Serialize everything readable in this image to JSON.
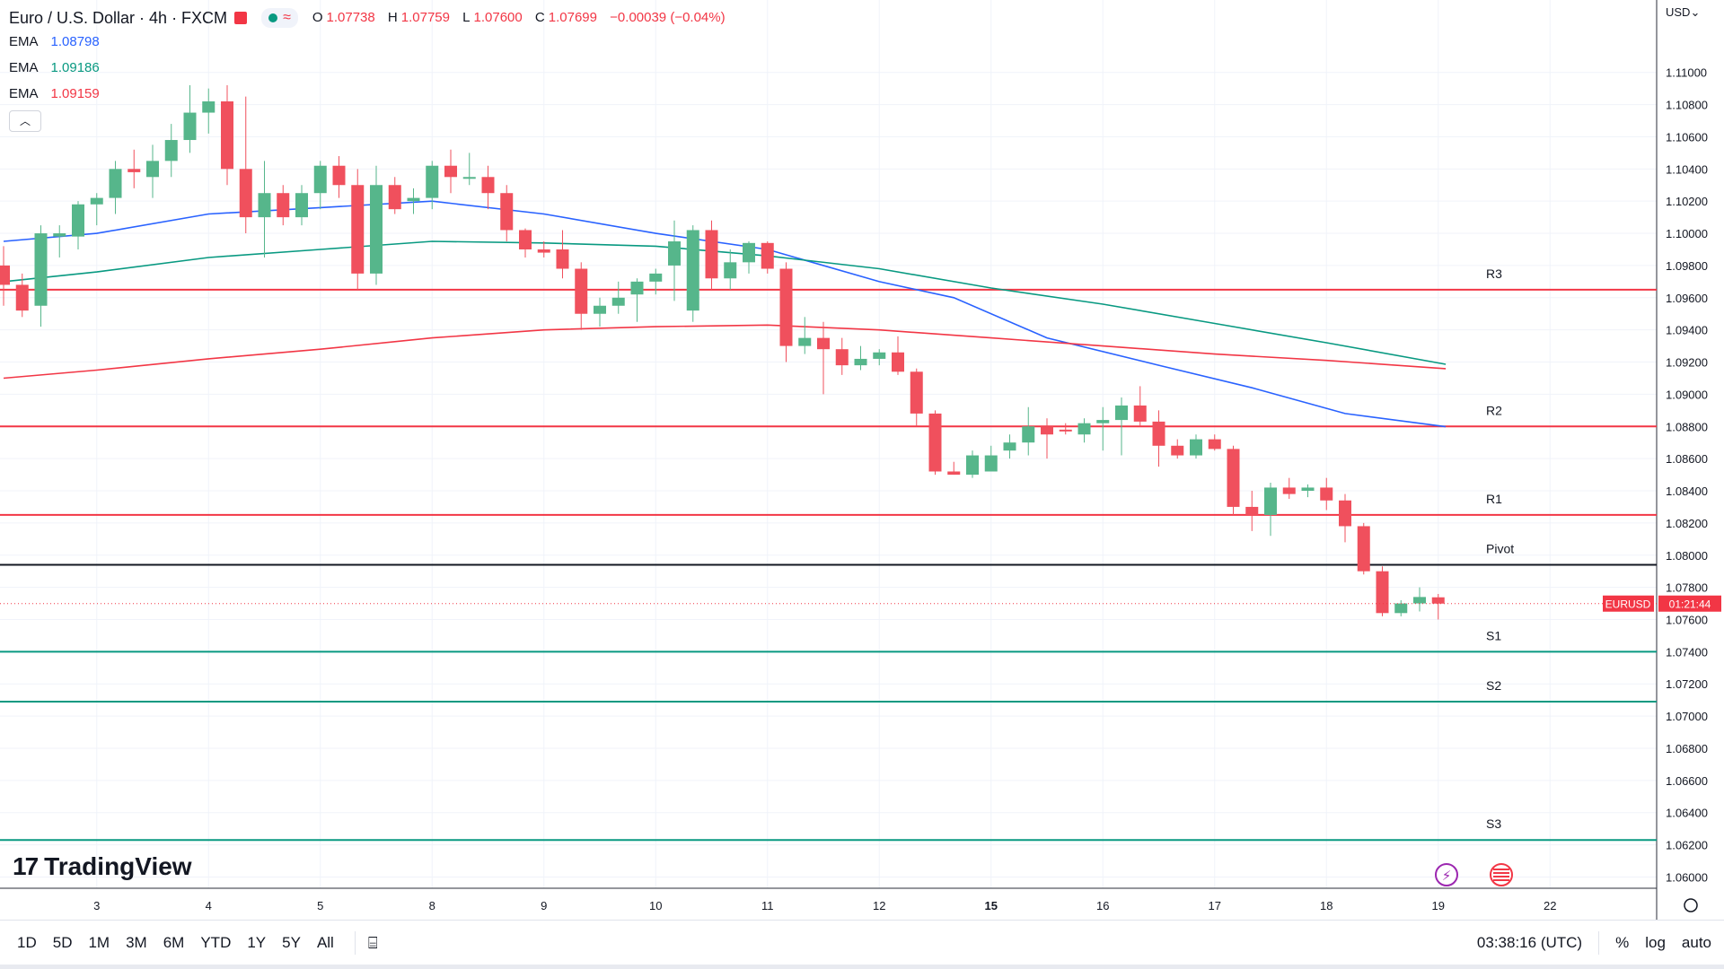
{
  "header": {
    "symbol": "Euro / U.S. Dollar · 4h · FXCM",
    "wave_icon": "≈",
    "ohlc": [
      {
        "label": "O",
        "value": "1.07738"
      },
      {
        "label": "H",
        "value": "1.07759"
      },
      {
        "label": "L",
        "value": "1.07600"
      },
      {
        "label": "C",
        "value": "1.07699"
      },
      {
        "label": "",
        "value": "−0.00039 (−0.04%)"
      }
    ]
  },
  "indicators": [
    {
      "name": "EMA",
      "value": "1.08798",
      "color": "#2962ff"
    },
    {
      "name": "EMA",
      "value": "1.09186",
      "color": "#089981"
    },
    {
      "name": "EMA",
      "value": "1.09159",
      "color": "#f23645"
    }
  ],
  "currency_menu": "USD⌄",
  "brand": "TradingView",
  "price_tag": {
    "symbol": "EURUSD",
    "countdown": "01:21:44"
  },
  "timeframes": [
    "1D",
    "5D",
    "1M",
    "3M",
    "6M",
    "YTD",
    "1Y",
    "5Y",
    "All"
  ],
  "clock": "03:38:16 (UTC)",
  "scale_options": [
    "%",
    "log",
    "auto"
  ],
  "chart_data": {
    "type": "candlestick",
    "title": "",
    "ylim": [
      1.0593,
      1.1145
    ],
    "y_ticks": [
      "1.11000",
      "1.10800",
      "1.10600",
      "1.10400",
      "1.10200",
      "1.10000",
      "1.09800",
      "1.09600",
      "1.09400",
      "1.09200",
      "1.09000",
      "1.08800",
      "1.08600",
      "1.08400",
      "1.08200",
      "1.08000",
      "1.07800",
      "1.07600",
      "1.07400",
      "1.07200",
      "1.07000",
      "1.06800",
      "1.06600",
      "1.06400",
      "1.06200",
      "1.06000"
    ],
    "x_ticks": [
      {
        "label": "3",
        "index": 5.0
      },
      {
        "label": "4",
        "index": 11.0
      },
      {
        "label": "5",
        "index": 17.0
      },
      {
        "label": "8",
        "index": 23.0
      },
      {
        "label": "9",
        "index": 29.0
      },
      {
        "label": "10",
        "index": 35.0
      },
      {
        "label": "11",
        "index": 41.0
      },
      {
        "label": "12",
        "index": 47.0
      },
      {
        "label": "15",
        "index": 53.0
      },
      {
        "label": "16",
        "index": 59.0
      },
      {
        "label": "17",
        "index": 65.0
      },
      {
        "label": "18",
        "index": 71.0
      },
      {
        "label": "19",
        "index": 77.0
      },
      {
        "label": "22",
        "index": 83.0
      }
    ],
    "candles": [
      [
        1.098,
        1.0992,
        1.0955,
        1.0968
      ],
      [
        1.0968,
        1.0975,
        1.0948,
        1.0952
      ],
      [
        1.0955,
        1.1005,
        1.0942,
        1.1
      ],
      [
        1.0998,
        1.1005,
        1.0985,
        1.1
      ],
      [
        1.0998,
        1.102,
        1.099,
        1.1018
      ],
      [
        1.1018,
        1.1025,
        1.1005,
        1.1022
      ],
      [
        1.1022,
        1.1045,
        1.1012,
        1.104
      ],
      [
        1.104,
        1.1052,
        1.1028,
        1.1038
      ],
      [
        1.1035,
        1.1055,
        1.1022,
        1.1045
      ],
      [
        1.1045,
        1.1068,
        1.1035,
        1.1058
      ],
      [
        1.1058,
        1.1092,
        1.105,
        1.1075
      ],
      [
        1.1075,
        1.109,
        1.1062,
        1.1082
      ],
      [
        1.1082,
        1.1092,
        1.103,
        1.104
      ],
      [
        1.104,
        1.1085,
        1.1,
        1.101
      ],
      [
        1.101,
        1.1045,
        1.0985,
        1.1025
      ],
      [
        1.1025,
        1.103,
        1.1005,
        1.101
      ],
      [
        1.101,
        1.103,
        1.1005,
        1.1025
      ],
      [
        1.1025,
        1.1045,
        1.1015,
        1.1042
      ],
      [
        1.1042,
        1.1048,
        1.1022,
        1.103
      ],
      [
        1.103,
        1.104,
        1.0965,
        1.0975
      ],
      [
        1.0975,
        1.1042,
        1.0968,
        1.103
      ],
      [
        1.103,
        1.1035,
        1.1012,
        1.1015
      ],
      [
        1.102,
        1.1028,
        1.1012,
        1.1022
      ],
      [
        1.1022,
        1.1045,
        1.1015,
        1.1042
      ],
      [
        1.1042,
        1.1052,
        1.1025,
        1.1035
      ],
      [
        1.1035,
        1.105,
        1.103,
        1.1035
      ],
      [
        1.1035,
        1.1042,
        1.1015,
        1.1025
      ],
      [
        1.1025,
        1.103,
        1.0995,
        1.1002
      ],
      [
        1.1002,
        1.1003,
        1.0985,
        1.099
      ],
      [
        1.099,
        1.0995,
        1.0985,
        1.0988
      ],
      [
        1.099,
        1.1002,
        1.0972,
        1.0978
      ],
      [
        1.0978,
        1.0982,
        1.094,
        1.095
      ],
      [
        1.095,
        1.096,
        1.0942,
        1.0955
      ],
      [
        1.0955,
        1.097,
        1.095,
        1.096
      ],
      [
        1.0962,
        1.0972,
        1.0945,
        1.097
      ],
      [
        1.097,
        1.0978,
        1.0962,
        1.0975
      ],
      [
        1.098,
        1.1008,
        1.0958,
        1.0995
      ],
      [
        1.0952,
        1.1005,
        1.0945,
        1.1002
      ],
      [
        1.1002,
        1.1008,
        1.0965,
        1.0972
      ],
      [
        1.0972,
        1.099,
        1.0965,
        1.0982
      ],
      [
        1.0982,
        1.0995,
        1.0975,
        1.0994
      ],
      [
        1.0994,
        1.0995,
        1.0975,
        1.0978
      ],
      [
        1.0978,
        1.0982,
        1.092,
        1.093
      ],
      [
        1.093,
        1.0948,
        1.0925,
        1.0935
      ],
      [
        1.0935,
        1.0945,
        1.09,
        1.0928
      ],
      [
        1.0928,
        1.0935,
        1.0912,
        1.0918
      ],
      [
        1.0918,
        1.093,
        1.0915,
        1.0922
      ],
      [
        1.0922,
        1.0928,
        1.0918,
        1.0926
      ],
      [
        1.0926,
        1.0936,
        1.0912,
        1.0914
      ],
      [
        1.0914,
        1.0916,
        1.088,
        1.0888
      ],
      [
        1.0888,
        1.089,
        1.085,
        1.0852
      ],
      [
        1.0852,
        1.0858,
        1.085,
        1.085
      ],
      [
        1.085,
        1.0865,
        1.0848,
        1.0862
      ],
      [
        1.0852,
        1.0868,
        1.0852,
        1.0862
      ],
      [
        1.0865,
        1.0875,
        1.086,
        1.087
      ],
      [
        1.087,
        1.0892,
        1.0862,
        1.088
      ],
      [
        1.088,
        1.0885,
        1.086,
        1.0875
      ],
      [
        1.0878,
        1.0882,
        1.0875,
        1.0877
      ],
      [
        1.0875,
        1.0885,
        1.087,
        1.0882
      ],
      [
        1.0882,
        1.0892,
        1.0865,
        1.0884
      ],
      [
        1.0884,
        1.0898,
        1.0862,
        1.0893
      ],
      [
        1.0893,
        1.0905,
        1.088,
        1.0883
      ],
      [
        1.0883,
        1.089,
        1.0855,
        1.0868
      ],
      [
        1.0868,
        1.0872,
        1.086,
        1.0862
      ],
      [
        1.0862,
        1.0875,
        1.086,
        1.0872
      ],
      [
        1.0872,
        1.0875,
        1.0865,
        1.0866
      ],
      [
        1.0866,
        1.0868,
        1.0825,
        1.083
      ],
      [
        1.083,
        1.084,
        1.0815,
        1.0825
      ],
      [
        1.0825,
        1.0845,
        1.0812,
        1.0842
      ],
      [
        1.0842,
        1.0848,
        1.0835,
        1.0838
      ],
      [
        1.084,
        1.0844,
        1.0836,
        1.0842
      ],
      [
        1.0842,
        1.0848,
        1.0828,
        1.0834
      ],
      [
        1.0834,
        1.0838,
        1.0808,
        1.0818
      ],
      [
        1.0818,
        1.082,
        1.0788,
        1.079
      ],
      [
        1.079,
        1.0793,
        1.0762,
        1.0764
      ],
      [
        1.0764,
        1.0772,
        1.0762,
        1.077
      ],
      [
        1.077,
        1.078,
        1.0765,
        1.0774
      ],
      [
        1.07738,
        1.07759,
        1.076,
        1.07699
      ]
    ],
    "ema_series": [
      {
        "color": "#2962ff",
        "points": [
          [
            0,
            1.0995
          ],
          [
            5,
            1.1
          ],
          [
            11,
            1.1012
          ],
          [
            17,
            1.1016
          ],
          [
            23,
            1.102
          ],
          [
            29,
            1.1012
          ],
          [
            35,
            1.1
          ],
          [
            41,
            1.099
          ],
          [
            47,
            1.097
          ],
          [
            51,
            1.096
          ],
          [
            56,
            1.0935
          ],
          [
            62,
            1.0918
          ],
          [
            67,
            1.0904
          ],
          [
            72,
            1.0888
          ],
          [
            77.4,
            1.08798
          ]
        ]
      },
      {
        "color": "#089981",
        "points": [
          [
            0,
            1.097
          ],
          [
            5,
            1.0976
          ],
          [
            11,
            1.0985
          ],
          [
            17,
            1.099
          ],
          [
            23,
            1.0995
          ],
          [
            29,
            1.0994
          ],
          [
            35,
            1.0992
          ],
          [
            41,
            1.0986
          ],
          [
            47,
            1.0978
          ],
          [
            53,
            1.0966
          ],
          [
            59,
            1.0956
          ],
          [
            65,
            1.0944
          ],
          [
            71,
            1.0932
          ],
          [
            77.4,
            1.09186
          ]
        ]
      },
      {
        "color": "#f23645",
        "points": [
          [
            0,
            1.091
          ],
          [
            5,
            1.0915
          ],
          [
            11,
            1.0922
          ],
          [
            17,
            1.0928
          ],
          [
            23,
            1.0935
          ],
          [
            29,
            1.094
          ],
          [
            35,
            1.0942
          ],
          [
            41,
            1.0943
          ],
          [
            47,
            1.094
          ],
          [
            53,
            1.0935
          ],
          [
            59,
            1.093
          ],
          [
            65,
            1.0925
          ],
          [
            71,
            1.0921
          ],
          [
            77.4,
            1.09159
          ]
        ]
      }
    ],
    "levels": [
      {
        "label": "R3",
        "value": 1.0965,
        "color": "#f23645"
      },
      {
        "label": "R2",
        "value": 1.088,
        "color": "#f23645"
      },
      {
        "label": "R1",
        "value": 1.0825,
        "color": "#f23645"
      },
      {
        "label": "Pivot",
        "value": 1.0794,
        "color": "#131722"
      },
      {
        "label": "S1",
        "value": 1.074,
        "color": "#089981"
      },
      {
        "label": "S2",
        "value": 1.0709,
        "color": "#089981"
      },
      {
        "label": "S3",
        "value": 1.0623,
        "color": "#089981"
      }
    ],
    "last_price": 1.07699,
    "up_color": "#56b68b",
    "down_color": "#f0505d"
  }
}
